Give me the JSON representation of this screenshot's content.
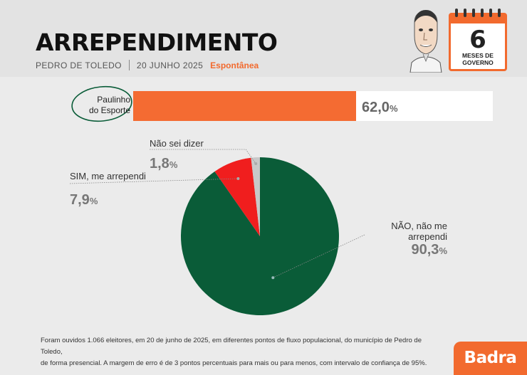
{
  "header": {
    "title": "ARREPENDIMENTO",
    "city": "PEDRO DE TOLEDO",
    "date": "20 JUNHO 2025",
    "mode": "Espontânea"
  },
  "badge": {
    "number": "6",
    "label": "MESES DE GOVERNO",
    "icon": "calendar-icon"
  },
  "colors": {
    "accent": "#f26a2e",
    "sim": "#f01e1e",
    "nao": "#0a5c38",
    "nao_sei": "#c8c8c8"
  },
  "chart_data": [
    {
      "type": "bar",
      "categories": [
        "Paulinho do Esporte"
      ],
      "values": [
        62.0
      ],
      "value_labels": [
        "62,0%"
      ],
      "xlim": [
        0,
        100
      ]
    },
    {
      "type": "pie",
      "slices": [
        {
          "label": "NÃO, não me arrependi",
          "value": 90.3,
          "value_label": "90,3%",
          "color": "#0a5c38"
        },
        {
          "label": "SIM, me arrependi",
          "value": 7.9,
          "value_label": "7,9%",
          "color": "#f01e1e"
        },
        {
          "label": "Não sei dizer",
          "value": 1.8,
          "value_label": "1,8%",
          "color": "#c8c8c8"
        }
      ]
    }
  ],
  "bar": {
    "name_line1": "Paulinho",
    "name_line2": "do Esporte",
    "value_num": "62,0",
    "value_pct": "%"
  },
  "pie_labels": {
    "nao_label": "NÃO, não me arrependi",
    "nao_num": "90,3",
    "sim_label": "SIM, me arrependi",
    "sim_num": "7,9",
    "naosei_label": "Não sei dizer",
    "naosei_num": "1,8",
    "pct": "%"
  },
  "footnote": {
    "line1": "Foram ouvidos 1.066 eleitores, em 20 de junho de 2025, em diferentes pontos de fluxo populacional, do município de Pedro de Toledo,",
    "line2": "de forma presencial. A margem de erro é de 3 pontos percentuais para mais ou para menos, com intervalo de confiança de 95%."
  },
  "brand": "Badra"
}
